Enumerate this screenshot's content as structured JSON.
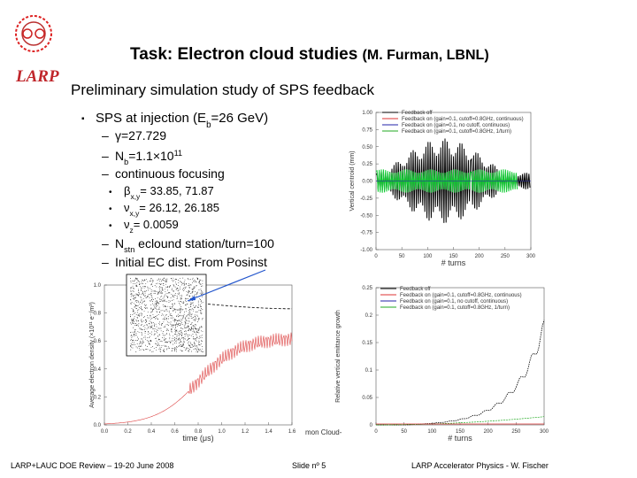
{
  "header": {
    "logo_text": "LARP",
    "title": "Task: Electron cloud studies",
    "title_note": "(M. Furman, LBNL)",
    "subtitle": "Preliminary simulation study of SPS feedback"
  },
  "bullets": {
    "main": [
      "SPS at injection (E",
      "b",
      "=26 GeV)"
    ],
    "items": [
      [
        "γ=27.729"
      ],
      [
        "N",
        "b",
        "=1.1×10",
        "11"
      ],
      [
        "continuous focusing"
      ],
      [
        "N",
        "stn",
        " eclound station/turn=100"
      ],
      [
        "Initial EC dist. From Posinst"
      ]
    ],
    "subitems": [
      [
        "β",
        "x,y",
        "= 33.85, 71.87"
      ],
      [
        "ν",
        "x,y",
        "= 26.12, 26.185"
      ],
      [
        "ν",
        "z",
        "= 0.0059"
      ]
    ]
  },
  "figure_top": {
    "legend": [
      "Feedback off",
      "Feedback on (gain=0.1, cutoff=0.8GHz, continuous)",
      "Feedback on (gain=0.1, no cutoff, continuous)",
      "Feedback on (gain=0.1, cutoff=0.8GHz, 1/turn)"
    ],
    "yticks": [
      "1.00",
      "0.75",
      "0.50",
      "0.25",
      "0.00",
      "-0.25",
      "-0.50",
      "-0.75",
      "-1.00"
    ],
    "xticks": [
      "0",
      "50",
      "100",
      "150",
      "200",
      "250",
      "300"
    ],
    "xlabel": "# turns",
    "ylabel": "Vertical centroid (mm)"
  },
  "figure_bottom_right": {
    "legend": [
      "Feedback off",
      "Feedback on (gain=0.1, cutoff=0.8GHz, continuous)",
      "Feedback on (gain=0.1, no cutoff, continuous)",
      "Feedback on (gain=0.1, cutoff=0.8GHz, 1/turn)"
    ],
    "yticks": [
      "0.25",
      "0.2",
      "0.15",
      "0.1",
      "0.05",
      "0"
    ],
    "xticks": [
      "0",
      "50",
      "100",
      "150",
      "200",
      "250",
      "300"
    ],
    "xlabel": "# turns",
    "ylabel": "Relative vertical emittance growth"
  },
  "figure_bottom_left": {
    "yticks": [
      "1.0",
      "0.8",
      "0.6",
      "0.4",
      "0.2",
      "0.0"
    ],
    "xticks": [
      "0.0",
      "0.2",
      "0.4",
      "0.6",
      "0.8",
      "1.0",
      "1.2",
      "1.4",
      "1.6"
    ],
    "xlabel": "time (μs)",
    "ylabel": "Average electron density (×10¹¹ e⁻/m³)",
    "side_note": "mon Cloud-"
  },
  "footer": {
    "left": "LARP+LAUC DOE Review – 19-20 June 2008",
    "center": "Slide nº 5",
    "right": "LARP Accelerator Physics - W. Fischer"
  }
}
